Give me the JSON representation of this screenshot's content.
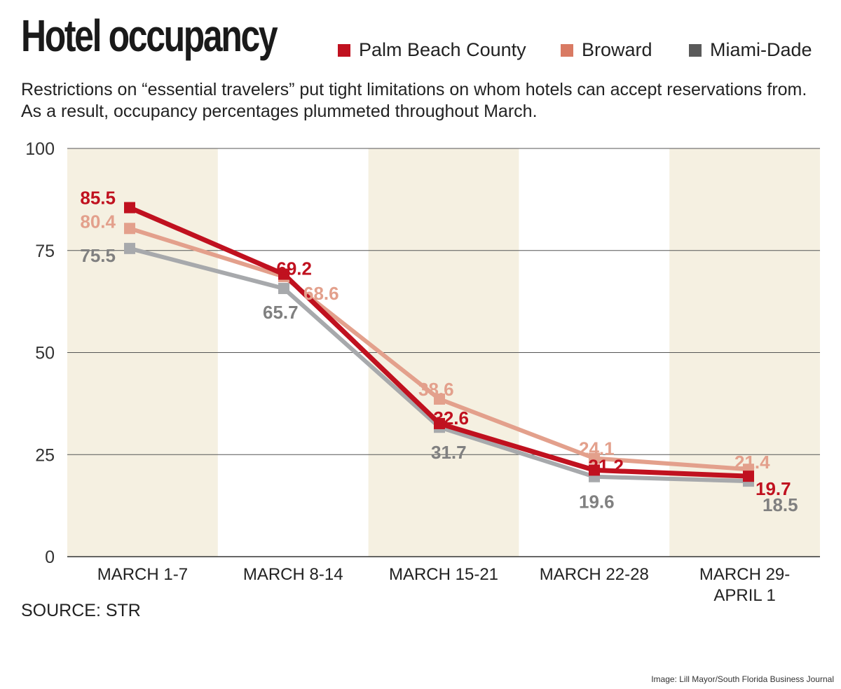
{
  "chart_data": {
    "type": "line",
    "title": "Hotel occupancy",
    "subtitle": "Restrictions on “essential travelers” put tight limitations on whom hotels can accept reservations from. As a result, occupancy percentages plummeted throughout March.",
    "categories": [
      [
        "MARCH 1-7"
      ],
      [
        "MARCH 8-14"
      ],
      [
        "MARCH 15-21"
      ],
      [
        "MARCH 22-28"
      ],
      [
        "MARCH 29-",
        "APRIL 1"
      ]
    ],
    "ylim": [
      0,
      100
    ],
    "yticks": [
      "0",
      "25",
      "50",
      "75",
      "100"
    ],
    "grid": true,
    "legend_placement": "top",
    "series": [
      {
        "name": "Palm Beach County",
        "color": "#c0111f",
        "label_color": "#c0111f",
        "values": [
          85.5,
          69.2,
          32.6,
          21.2,
          19.7
        ],
        "labels": [
          "85.5",
          "69.2",
          "32.6",
          "21.2",
          "19.7"
        ]
      },
      {
        "name": "Broward",
        "color": "#e3a08c",
        "label_color": "#e3a08c",
        "legend_color": "#d97a63",
        "values": [
          80.4,
          68.6,
          38.6,
          24.1,
          21.4
        ],
        "labels": [
          "80.4",
          "68.6",
          "38.6",
          "24.1",
          "21.4"
        ]
      },
      {
        "name": "Miami-Dade",
        "color": "#a7a9ac",
        "label_color": "#808080",
        "legend_color": "#5a5a5a",
        "values": [
          75.5,
          65.7,
          31.7,
          19.6,
          18.5
        ],
        "labels": [
          "75.5",
          "65.7",
          "31.7",
          "19.6",
          "18.5"
        ]
      }
    ],
    "band_color": "#f5f0e1"
  },
  "source": "SOURCE: STR",
  "credit": "Image: Lill Mayor/South Florida Business Journal"
}
